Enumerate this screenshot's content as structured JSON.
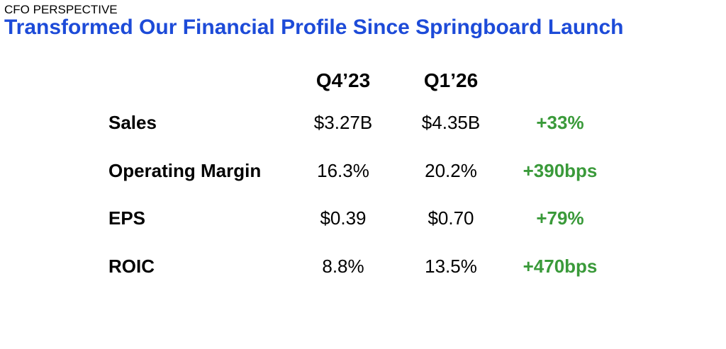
{
  "slide": {
    "kicker": "CFO PERSPECTIVE",
    "title": "Transformed Our Financial Profile Since Springboard Launch"
  },
  "colors": {
    "title": "#1d4bd8",
    "positive": "#3a9a3a"
  },
  "table": {
    "headers": [
      "Q4’23",
      "Q1’26"
    ],
    "rows": [
      {
        "label": "Sales",
        "q4_23": "$3.27B",
        "q1_26": "$4.35B",
        "change": "+33%"
      },
      {
        "label": "Operating Margin",
        "q4_23": "16.3%",
        "q1_26": "20.2%",
        "change": "+390bps"
      },
      {
        "label": "EPS",
        "q4_23": "$0.39",
        "q1_26": "$0.70",
        "change": "+79%"
      },
      {
        "label": "ROIC",
        "q4_23": "8.8%",
        "q1_26": "13.5%",
        "change": "+470bps"
      }
    ]
  }
}
